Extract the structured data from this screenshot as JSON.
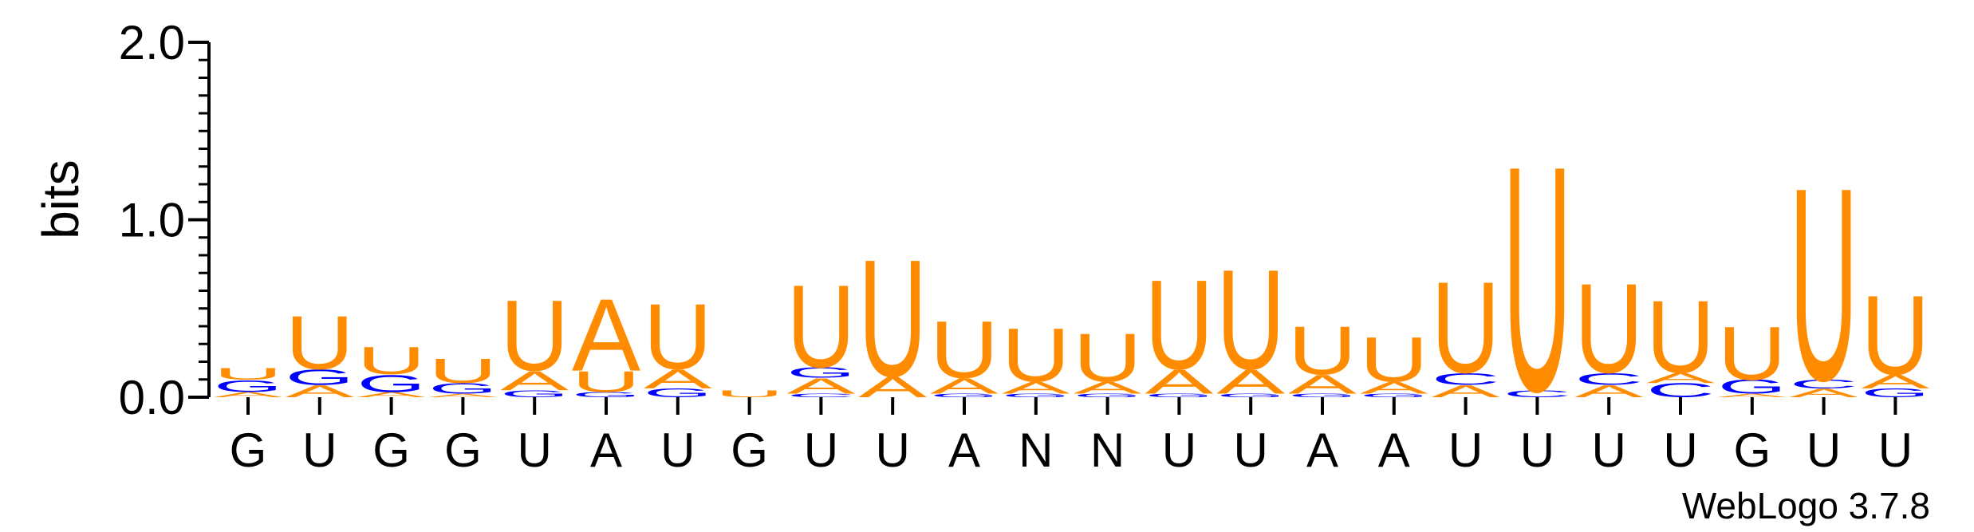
{
  "chart_data": {
    "type": "sequence-logo",
    "ylabel": "bits",
    "ylim": [
      0,
      2
    ],
    "yticks": [
      "0.0",
      "1.0",
      "2.0"
    ],
    "credit": "WebLogo 3.7.8",
    "colors": {
      "U": "#FF8C00",
      "A": "#FF8C00",
      "G": "#0000FF",
      "C": "#0000FF"
    },
    "positions": [
      {
        "label": "G",
        "stack": [
          [
            "A",
            0.03
          ],
          [
            "G",
            0.07
          ],
          [
            "U",
            0.07
          ]
        ]
      },
      {
        "label": "U",
        "stack": [
          [
            "A",
            0.07
          ],
          [
            "G",
            0.09
          ],
          [
            "U",
            0.31
          ]
        ]
      },
      {
        "label": "G",
        "stack": [
          [
            "A",
            0.03
          ],
          [
            "G",
            0.1
          ],
          [
            "U",
            0.16
          ]
        ]
      },
      {
        "label": "G",
        "stack": [
          [
            "A",
            0.02
          ],
          [
            "G",
            0.06
          ],
          [
            "U",
            0.14
          ]
        ]
      },
      {
        "label": "U",
        "stack": [
          [
            "G",
            0.04
          ],
          [
            "A",
            0.11
          ],
          [
            "U",
            0.41
          ]
        ]
      },
      {
        "label": "A",
        "stack": [
          [
            "G",
            0.03
          ],
          [
            "U",
            0.12
          ],
          [
            "A",
            0.42
          ]
        ]
      },
      {
        "label": "U",
        "stack": [
          [
            "G",
            0.05
          ],
          [
            "A",
            0.11
          ],
          [
            "U",
            0.38
          ]
        ]
      },
      {
        "label": "G",
        "stack": [
          [
            "U",
            0.04
          ]
        ]
      },
      {
        "label": "U",
        "stack": [
          [
            "C",
            0.02
          ],
          [
            "A",
            0.09
          ],
          [
            "G",
            0.06
          ],
          [
            "U",
            0.48
          ]
        ]
      },
      {
        "label": "U",
        "stack": [
          [
            "A",
            0.12
          ],
          [
            "U",
            0.68
          ]
        ]
      },
      {
        "label": "A",
        "stack": [
          [
            "G",
            0.02
          ],
          [
            "A",
            0.09
          ],
          [
            "U",
            0.33
          ]
        ]
      },
      {
        "label": "N",
        "stack": [
          [
            "G",
            0.02
          ],
          [
            "A",
            0.07
          ],
          [
            "U",
            0.31
          ]
        ]
      },
      {
        "label": "N",
        "stack": [
          [
            "G",
            0.02
          ],
          [
            "A",
            0.07
          ],
          [
            "U",
            0.28
          ]
        ]
      },
      {
        "label": "U",
        "stack": [
          [
            "G",
            0.02
          ],
          [
            "A",
            0.14
          ],
          [
            "U",
            0.52
          ]
        ]
      },
      {
        "label": "U",
        "stack": [
          [
            "G",
            0.02
          ],
          [
            "A",
            0.14
          ],
          [
            "U",
            0.58
          ]
        ]
      },
      {
        "label": "A",
        "stack": [
          [
            "G",
            0.02
          ],
          [
            "A",
            0.11
          ],
          [
            "U",
            0.28
          ]
        ]
      },
      {
        "label": "A",
        "stack": [
          [
            "G",
            0.02
          ],
          [
            "A",
            0.07
          ],
          [
            "U",
            0.26
          ]
        ]
      },
      {
        "label": "U",
        "stack": [
          [
            "A",
            0.07
          ],
          [
            "C",
            0.07
          ],
          [
            "U",
            0.53
          ]
        ]
      },
      {
        "label": "U",
        "stack": [
          [
            "C",
            0.04
          ],
          [
            "U",
            1.31
          ]
        ]
      },
      {
        "label": "U",
        "stack": [
          [
            "A",
            0.07
          ],
          [
            "C",
            0.07
          ],
          [
            "U",
            0.52
          ]
        ]
      },
      {
        "label": "U",
        "stack": [
          [
            "C",
            0.08
          ],
          [
            "A",
            0.06
          ],
          [
            "U",
            0.42
          ]
        ]
      },
      {
        "label": "G",
        "stack": [
          [
            "A",
            0.02
          ],
          [
            "G",
            0.08
          ],
          [
            "U",
            0.31
          ]
        ]
      },
      {
        "label": "U",
        "stack": [
          [
            "A",
            0.05
          ],
          [
            "C",
            0.05
          ],
          [
            "U",
            1.12
          ]
        ]
      },
      {
        "label": "U",
        "stack": [
          [
            "G",
            0.05
          ],
          [
            "A",
            0.08
          ],
          [
            "U",
            0.46
          ]
        ]
      }
    ]
  }
}
